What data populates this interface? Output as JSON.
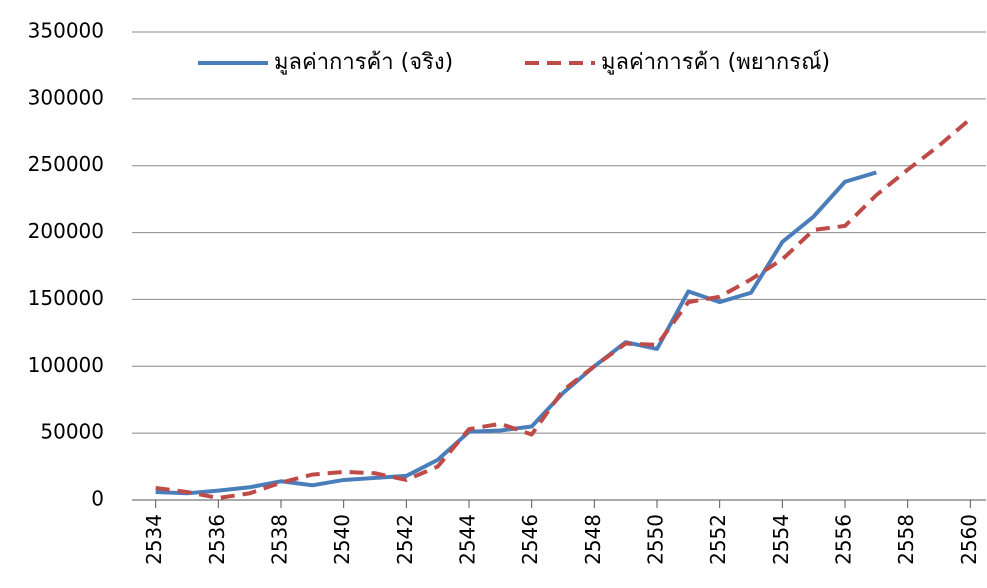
{
  "chart_data": {
    "type": "line",
    "x": [
      2534,
      2535,
      2536,
      2537,
      2538,
      2539,
      2540,
      2541,
      2542,
      2543,
      2544,
      2545,
      2546,
      2547,
      2548,
      2549,
      2550,
      2551,
      2552,
      2553,
      2554,
      2555,
      2556,
      2557,
      2558,
      2559,
      2560
    ],
    "series": [
      {
        "name": "มูลค่าการค้า (จริง)",
        "color": "#4a7ebb",
        "dash": false,
        "values": [
          6000,
          5000,
          7000,
          9500,
          14000,
          11000,
          15000,
          16500,
          18000,
          30000,
          51000,
          52000,
          55000,
          80000,
          100000,
          118000,
          113000,
          156000,
          148000,
          155000,
          193000,
          212000,
          238000,
          245000,
          null,
          null,
          null
        ]
      },
      {
        "name": "มูลค่าการค้า (พยากรณ์)",
        "color": "#be4b48",
        "dash": true,
        "values": [
          9000,
          6000,
          1500,
          5000,
          13000,
          19000,
          21000,
          20000,
          15000,
          25000,
          53000,
          57000,
          49000,
          82000,
          100000,
          117000,
          116000,
          148000,
          152000,
          165000,
          180000,
          202000,
          205000,
          228000,
          247000,
          265000,
          285000
        ]
      }
    ],
    "xlim": [
      2533.5,
      2560.5
    ],
    "xticks": [
      2534,
      2536,
      2538,
      2540,
      2542,
      2544,
      2546,
      2548,
      2550,
      2552,
      2554,
      2556,
      2558,
      2560
    ],
    "ylim": [
      0,
      350000
    ],
    "yticks": [
      0,
      50000,
      100000,
      150000,
      200000,
      250000,
      300000,
      350000
    ],
    "grid": true
  }
}
